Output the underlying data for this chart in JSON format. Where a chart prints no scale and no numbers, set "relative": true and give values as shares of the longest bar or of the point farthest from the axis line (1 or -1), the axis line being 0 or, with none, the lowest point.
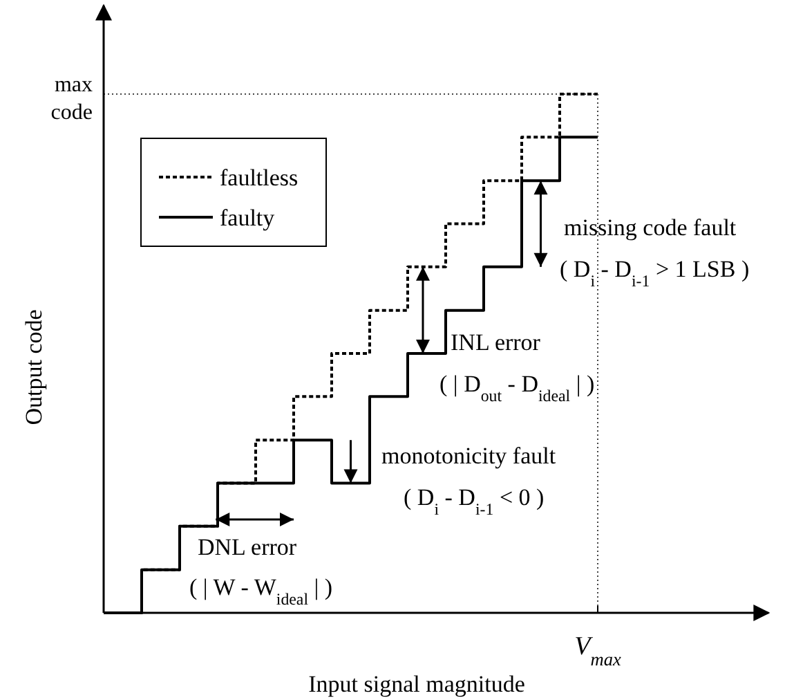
{
  "chart_data": {
    "type": "step",
    "relative": true,
    "xlabel": "Input signal magnitude",
    "ylabel": "Output code",
    "legend": "top left",
    "categories": [
      null,
      null,
      null,
      null,
      null,
      null,
      null,
      null,
      null,
      null,
      null,
      null,
      null,
      null
    ],
    "series": [
      {
        "name": "faulty",
        "color": "#000000",
        "line_style": "solid",
        "values": [
          0,
          0.083,
          0.167,
          0.25,
          0.25,
          0.333,
          0.25,
          0.417,
          0.5,
          0.583,
          0.667,
          0.833,
          0.917,
          0.917
        ]
      },
      {
        "name": "faultless",
        "color": "#000000",
        "line_style": "dashed",
        "values": [
          0,
          0.083,
          0.167,
          0.25,
          0.333,
          0.417,
          0.5,
          0.583,
          0.667,
          0.75,
          0.833,
          0.917,
          1,
          1
        ]
      }
    ],
    "ref_lines": [
      {
        "axis": "y",
        "value": 1,
        "label": "max code",
        "line_style": "dotted"
      }
    ],
    "annotations": [
      "missing code fault",
      "( D$_{i}$ - D$_{i-1}$ > 1 LSB )",
      "INL error",
      "( | D$_{out}$ - D$_{ideal}$ | )",
      "monotonicity fault",
      "( D$_{i}$ - D$_{i-1}$ < 0 )",
      "DNL error",
      "( | W - W$_{ideal}$ | )",
      "V$_{max}$"
    ]
  }
}
